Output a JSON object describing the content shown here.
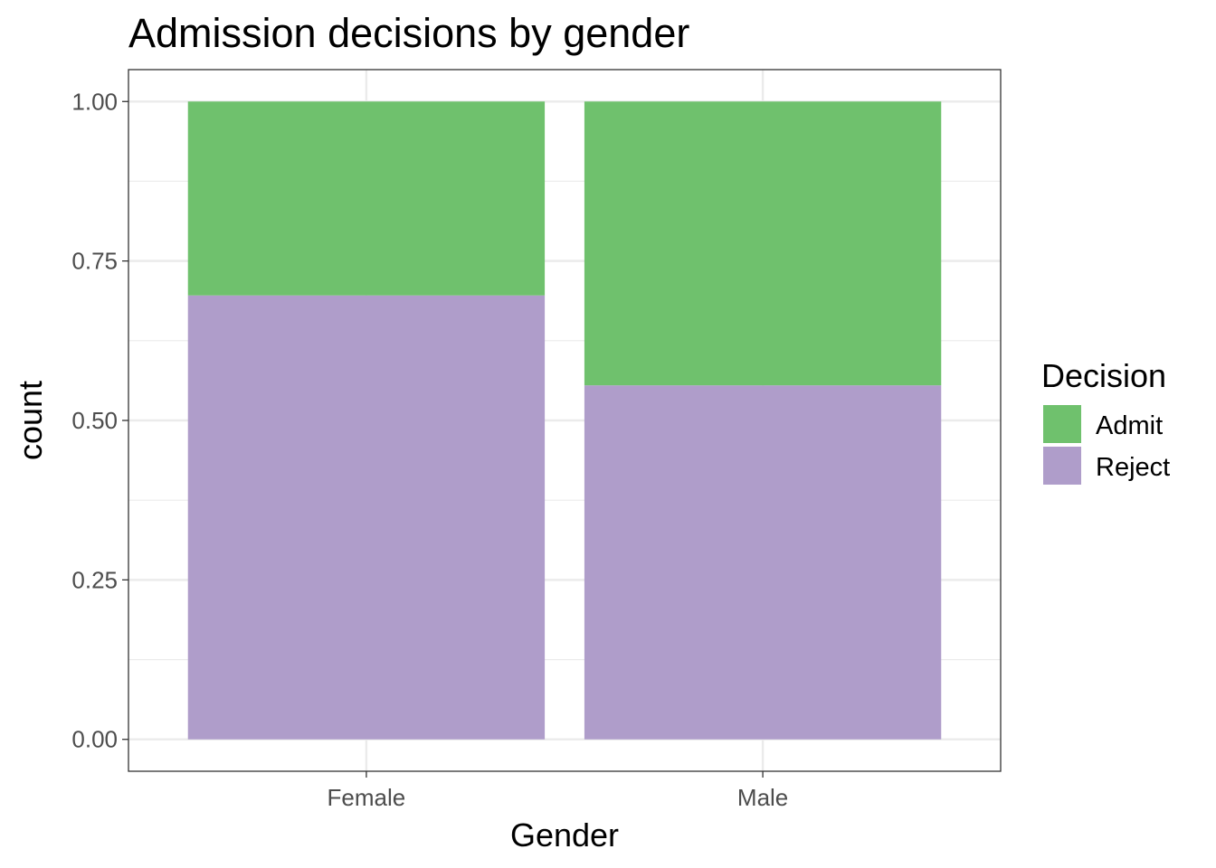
{
  "chart_data": {
    "type": "bar",
    "stacked": "fill",
    "title": "Admission decisions by gender",
    "xlabel": "Gender",
    "ylabel": "count",
    "categories": [
      "Female",
      "Male"
    ],
    "series": [
      {
        "name": "Admit",
        "values": [
          0.304,
          0.445
        ],
        "color": "#6FC16D"
      },
      {
        "name": "Reject",
        "values": [
          0.696,
          0.555
        ],
        "color": "#AF9DCA"
      }
    ],
    "ylim": [
      -0.05,
      1.05
    ],
    "yticks": [
      0,
      0.25,
      0.5,
      0.75,
      1
    ],
    "ytick_labels": [
      "0.00",
      "0.25",
      "0.50",
      "0.75",
      "1.00"
    ],
    "grid": true,
    "legend": {
      "title": "Decision",
      "position": "right"
    }
  }
}
